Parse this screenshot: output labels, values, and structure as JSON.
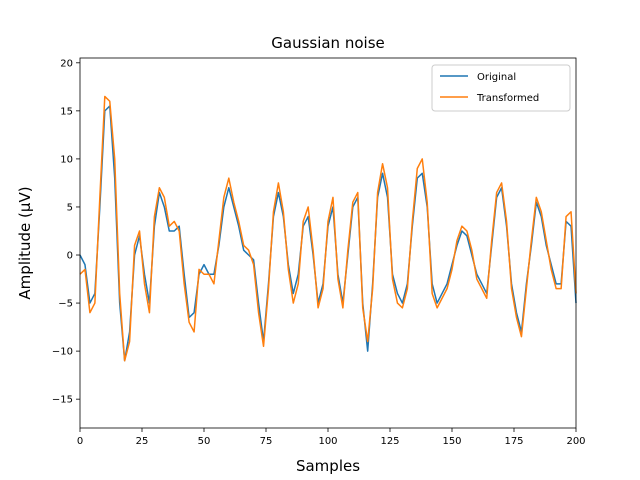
{
  "chart_data": {
    "type": "line",
    "title": "Gaussian noise",
    "xlabel": "Samples",
    "ylabel": "Amplitude (µV)",
    "xlim": [
      0,
      200
    ],
    "ylim": [
      -18,
      20.5
    ],
    "xticks": [
      0,
      25,
      50,
      75,
      100,
      125,
      150,
      175,
      200
    ],
    "yticks": [
      -15,
      -10,
      -5,
      0,
      5,
      10,
      15,
      20
    ],
    "grid": false,
    "legend_position": "top-right",
    "x": [
      0,
      2,
      4,
      6,
      8,
      10,
      12,
      14,
      16,
      18,
      20,
      22,
      24,
      26,
      28,
      30,
      32,
      34,
      36,
      38,
      40,
      42,
      44,
      46,
      48,
      50,
      52,
      54,
      56,
      58,
      60,
      62,
      64,
      66,
      68,
      70,
      72,
      74,
      76,
      78,
      80,
      82,
      84,
      86,
      88,
      90,
      92,
      94,
      96,
      98,
      100,
      102,
      104,
      106,
      108,
      110,
      112,
      114,
      116,
      118,
      120,
      122,
      124,
      126,
      128,
      130,
      132,
      134,
      136,
      138,
      140,
      142,
      144,
      146,
      148,
      150,
      152,
      154,
      156,
      158,
      160,
      162,
      164,
      166,
      168,
      170,
      172,
      174,
      176,
      178,
      180,
      182,
      184,
      186,
      188,
      190,
      192,
      194,
      196,
      198,
      200
    ],
    "series": [
      {
        "name": "Original",
        "color": "#1f77b4",
        "values": [
          0,
          -1,
          -5,
          -4,
          5,
          15,
          15.5,
          8,
          -5,
          -11,
          -8,
          0,
          2,
          -2,
          -5,
          3,
          6.5,
          5,
          2.5,
          2.5,
          3,
          -2,
          -6.5,
          -6,
          -2,
          -1,
          -2,
          -2,
          1,
          5,
          7,
          5,
          3,
          0.5,
          0,
          -0.5,
          -5,
          -9,
          -3,
          4,
          6.5,
          4,
          -1,
          -4,
          -2,
          3,
          4,
          0,
          -5,
          -3,
          3,
          5,
          -2,
          -5,
          0,
          5,
          6,
          -5,
          -10,
          -3,
          6,
          8.5,
          6,
          -2,
          -4,
          -5,
          -3,
          3,
          8,
          8.5,
          5,
          -3,
          -5,
          -4,
          -3,
          -1,
          1,
          2.5,
          2,
          0,
          -2,
          -3,
          -4,
          1,
          6,
          7,
          3,
          -3,
          -6,
          -8,
          -3,
          1,
          5.5,
          4,
          1,
          -1,
          -3,
          -3,
          3.5,
          3,
          -5
        ]
      },
      {
        "name": "Transformed",
        "color": "#ff7f0e",
        "values": [
          -2,
          -1.5,
          -6,
          -5,
          6,
          16.5,
          16,
          10,
          -4,
          -11,
          -9,
          1,
          2.5,
          -3,
          -6,
          4,
          7,
          6,
          3,
          3.5,
          2.5,
          -3,
          -7,
          -8,
          -1.5,
          -2,
          -2,
          -3,
          1.5,
          6,
          8,
          5.5,
          3.5,
          1,
          0.5,
          -1,
          -6,
          -9.5,
          -3.5,
          4.5,
          7.5,
          4.5,
          -1.5,
          -5,
          -3,
          3.5,
          5,
          0.5,
          -5.5,
          -3.5,
          3.5,
          6,
          -2.5,
          -5.5,
          0.5,
          5.5,
          6.5,
          -5.5,
          -9,
          -3.5,
          6.5,
          9.5,
          7,
          -2.5,
          -5,
          -5.5,
          -3.5,
          3.5,
          9,
          10,
          5.5,
          -4,
          -5.5,
          -4.5,
          -3.5,
          -1.5,
          1.5,
          3,
          2.5,
          0.5,
          -2.5,
          -3.5,
          -4.5,
          1.5,
          6.5,
          7.5,
          3.5,
          -3.5,
          -6.5,
          -8.5,
          -3.5,
          1.5,
          6,
          4.5,
          1.5,
          -1.5,
          -3.5,
          -3.5,
          4,
          4.5,
          -4
        ]
      }
    ]
  }
}
